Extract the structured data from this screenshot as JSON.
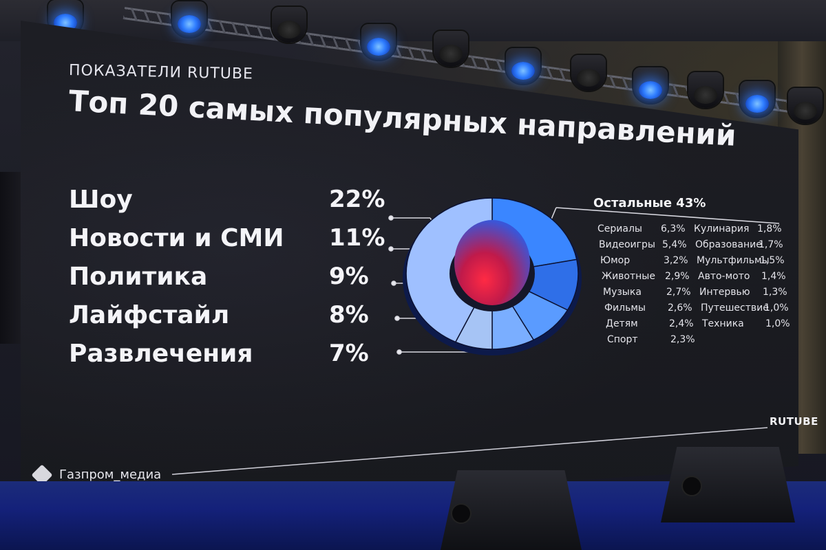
{
  "slide": {
    "kicker": "ПОКАЗАТЕЛИ RUTUBE",
    "title": "Топ 20 самых популярных направлений",
    "others_label": "Остальные 43%",
    "logo_rutube": "RUTUBE",
    "logo_gazprom": "Газпром_медиа"
  },
  "top_categories": [
    {
      "name": "Шоу",
      "percent": "22%"
    },
    {
      "name": "Новости и СМИ",
      "percent": "11%"
    },
    {
      "name": "Политика",
      "percent": "9%"
    },
    {
      "name": "Лайфстайл",
      "percent": "8%"
    },
    {
      "name": "Развлечения",
      "percent": "7%"
    }
  ],
  "others_left": [
    {
      "name": "Сериалы",
      "percent": "6,3%"
    },
    {
      "name": "Видеоигры",
      "percent": "5,4%"
    },
    {
      "name": "Юмор",
      "percent": "3,2%"
    },
    {
      "name": "Животные",
      "percent": "2,9%"
    },
    {
      "name": "Музыка",
      "percent": "2,7%"
    },
    {
      "name": "Фильмы",
      "percent": "2,6%"
    },
    {
      "name": "Детям",
      "percent": "2,4%"
    },
    {
      "name": "Спорт",
      "percent": "2,3%"
    }
  ],
  "others_right": [
    {
      "name": "Кулинария",
      "percent": "1,8%"
    },
    {
      "name": "Образование",
      "percent": "1,7%"
    },
    {
      "name": "Мультфильмы",
      "percent": "1,5%"
    },
    {
      "name": "Авто-мото",
      "percent": "1,4%"
    },
    {
      "name": "Интервью",
      "percent": "1,3%"
    },
    {
      "name": "Путешествие",
      "percent": "1,0%"
    },
    {
      "name": "Техника",
      "percent": "1,0%"
    }
  ],
  "donut_shares": [
    22,
    11,
    9,
    8,
    7,
    43
  ],
  "colors": {
    "donut": [
      "#3a86ff",
      "#2f6fe8",
      "#5a9bff",
      "#7aaeff",
      "#a6c4f5",
      "#9fc0ff"
    ],
    "center_red": "#e8213b",
    "light_blue": "#2f7dff"
  }
}
